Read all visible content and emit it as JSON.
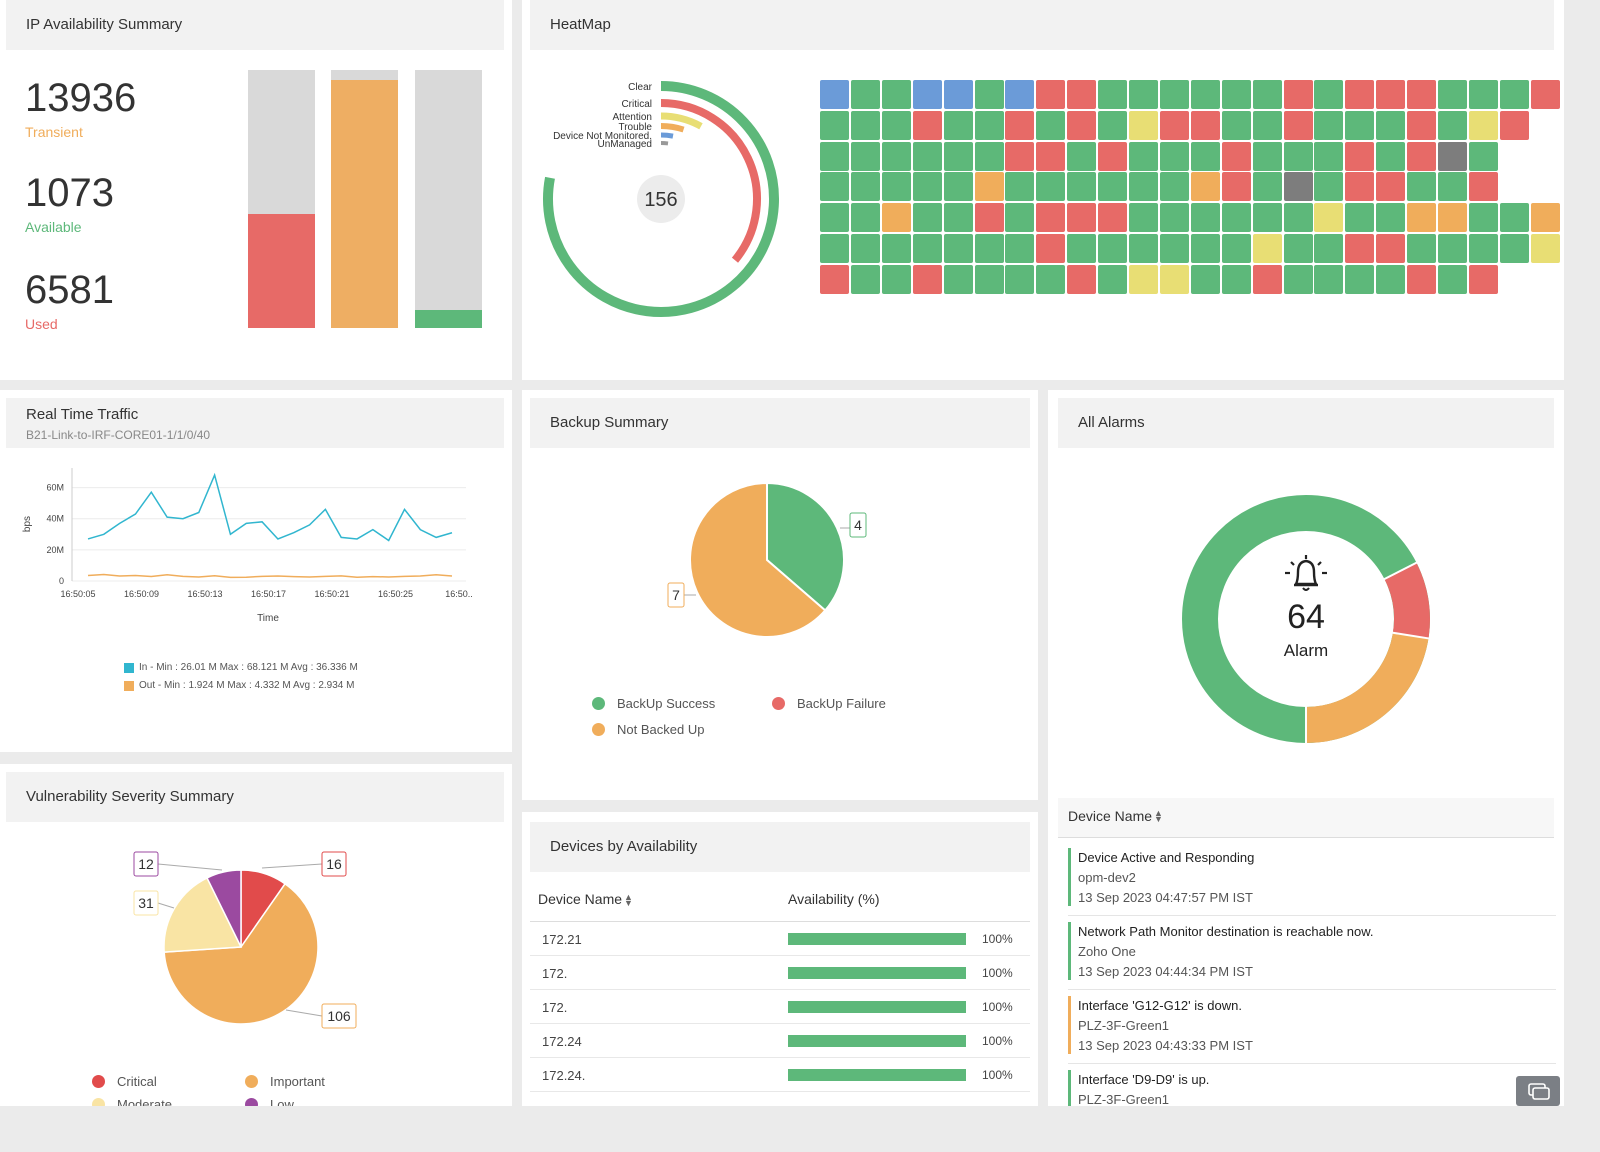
{
  "ip_summary": {
    "title": "IP Availability Summary",
    "stats": [
      {
        "value": "13936",
        "label": "Transient",
        "color": "#f0ad5b"
      },
      {
        "value": "1073",
        "label": "Available",
        "color": "#5db87a"
      },
      {
        "value": "6581",
        "label": "Used",
        "color": "#e76a67"
      }
    ],
    "bars": [
      {
        "fraction": 0.44,
        "color": "#e76a67"
      },
      {
        "fraction": 0.96,
        "color": "#eeae63"
      },
      {
        "fraction": 0.07,
        "color": "#5db87a"
      }
    ]
  },
  "heatmap": {
    "title": "HeatMap",
    "total": "156",
    "legend": [
      "Clear",
      "Critical",
      "Attention",
      "Trouble",
      "Device Not Monitored.",
      "UnManaged"
    ],
    "ring_colors": [
      "#5db87a",
      "#e76a67",
      "#e8de74",
      "#f0ad5b",
      "#6b9bd8",
      "#999999"
    ],
    "ring_fractions": [
      0.78,
      0.36,
      0.08,
      0.05,
      0.03,
      0.02
    ],
    "status_colors": {
      "g": "#5db87a",
      "r": "#e76a67",
      "b": "#6b9bd8",
      "y": "#e8de74",
      "o": "#f0ad5b",
      "k": "#7d7d7d"
    },
    "rows": [
      "bggbbgbrrggggggrgrrrgggr",
      "gggrggrgrgyrrggrgggrgyr",
      "ggggggrrgrgggrgggrgrkg",
      "gggggoggggggorgkgrrggr",
      "ggoggrgrrrggggggyggooggo",
      "gggggggrggggggyggrrggggy",
      "rggrggggrgyyggrggggrgr"
    ]
  },
  "traffic": {
    "title": "Real Time Traffic",
    "subtitle": "B21-Link-to-IRF-CORE01-1/1/0/40",
    "ylabel": "bps",
    "xlabel": "Time",
    "legend_in": "In - Min : 26.01 M Max : 68.121 M Avg : 36.336 M",
    "legend_out": "Out - Min : 1.924 M Max : 4.332 M Avg : 2.934 M",
    "in_color": "#31b6cf",
    "out_color": "#f0ad5b"
  },
  "chart_data": [
    {
      "type": "line",
      "xlabel": "Time",
      "ylabel": "bps",
      "y_ticks": [
        "0",
        "20M",
        "40M",
        "60M"
      ],
      "x_ticks": [
        "16:50:05",
        "16:50:09",
        "16:50:13",
        "16:50:17",
        "16:50:21",
        "16:50:25",
        "16:50.."
      ],
      "ylim": [
        0,
        70
      ],
      "series": [
        {
          "name": "In",
          "values": [
            27,
            30,
            37,
            43,
            57,
            41,
            40,
            44,
            68,
            30,
            37,
            38,
            27,
            31,
            36,
            46,
            28,
            27,
            33,
            26,
            46,
            33,
            28,
            31
          ]
        },
        {
          "name": "Out",
          "values": [
            3.5,
            4.2,
            3.2,
            3.5,
            2.9,
            4.0,
            3.0,
            2.6,
            3.4,
            2.3,
            2.4,
            3.0,
            3.2,
            2.8,
            2.6,
            3.0,
            3.3,
            2.4,
            2.8,
            2.6,
            3.0,
            3.2,
            4.0,
            3.2
          ]
        }
      ]
    },
    {
      "type": "pie",
      "title": "Backup Summary",
      "categories": [
        "BackUp Success",
        "Not Backed Up"
      ],
      "values": [
        4,
        7
      ]
    },
    {
      "type": "pie",
      "title": "Vulnerability Severity Summary",
      "categories": [
        "Critical",
        "Important",
        "Moderate",
        "Low"
      ],
      "values": [
        16,
        106,
        31,
        12
      ]
    }
  ],
  "backup": {
    "title": "Backup Summary",
    "labels": [
      "4",
      "7"
    ],
    "legend": [
      {
        "label": "BackUp Success",
        "color": "#5db87a"
      },
      {
        "label": "BackUp Failure",
        "color": "#e76a67"
      },
      {
        "label": "Not Backed Up",
        "color": "#f0ad5b"
      }
    ]
  },
  "alarms": {
    "title": "All Alarms",
    "count": "64",
    "label": "Alarm",
    "column": "Device Name",
    "items": [
      {
        "title": "Device Active and Responding",
        "device": "opm-dev2",
        "time": "13 Sep 2023 04:47:57 PM IST",
        "color": "#5db87a"
      },
      {
        "title": "Network Path Monitor destination is reachable now.",
        "device": "Zoho One",
        "time": "13 Sep 2023 04:44:34 PM IST",
        "color": "#5db87a"
      },
      {
        "title": "Interface 'G12-G12' is down.",
        "device": "PLZ-3F-Green1",
        "time": "13 Sep 2023 04:43:33 PM IST",
        "color": "#f0ad5b"
      },
      {
        "title": "Interface 'D9-D9' is up.",
        "device": "PLZ-3F-Green1",
        "time": "",
        "color": "#5db87a"
      }
    ]
  },
  "vulnerability": {
    "title": "Vulnerability Severity Summary",
    "labels": [
      "12",
      "16",
      "31",
      "106"
    ],
    "legend": [
      {
        "label": "Critical",
        "color": "#e14b4b"
      },
      {
        "label": "Important",
        "color": "#f0ad5b"
      },
      {
        "label": "Moderate",
        "color": "#f9e4a4"
      },
      {
        "label": "Low",
        "color": "#9b4aa0"
      }
    ]
  },
  "devices": {
    "title": "Devices by Availability",
    "col_name": "Device Name",
    "col_avail": "Availability (%)",
    "rows": [
      {
        "name": "172.21",
        "pct": "100%"
      },
      {
        "name": "172.",
        "pct": "100%"
      },
      {
        "name": "172.",
        "pct": "100%"
      },
      {
        "name": "172.24",
        "pct": "100%"
      },
      {
        "name": "172.24.",
        "pct": "100%"
      }
    ]
  }
}
